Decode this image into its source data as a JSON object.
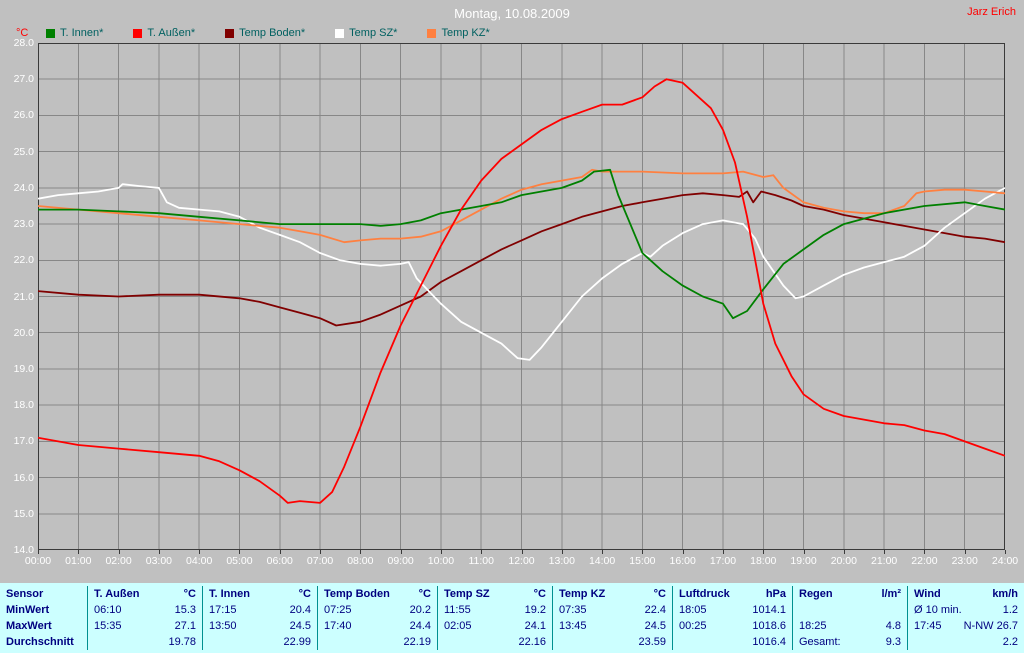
{
  "header": {
    "title": "Montag, 10.08.2009",
    "user": "Jarz Erich",
    "y_unit": "°C"
  },
  "colors": {
    "background": "#c0c0c0",
    "grid": "#878787",
    "title_text": "#ffffff",
    "accent_red": "#ff0000",
    "legend_text": "#006060",
    "table_background": "#ccffff",
    "table_text": "#000080",
    "table_divider": "#009090"
  },
  "chart_data": {
    "type": "line",
    "title": "Montag, 10.08.2009",
    "ylabel": "°C",
    "xlabel": "",
    "grid": true,
    "legend_position": "top-left",
    "xlim": [
      0,
      24
    ],
    "ylim": [
      14,
      28
    ],
    "x_ticks": [
      "00:00",
      "01:00",
      "02:00",
      "03:00",
      "04:00",
      "05:00",
      "06:00",
      "07:00",
      "08:00",
      "09:00",
      "10:00",
      "11:00",
      "12:00",
      "13:00",
      "14:00",
      "15:00",
      "16:00",
      "17:00",
      "18:00",
      "19:00",
      "20:00",
      "21:00",
      "22:00",
      "23:00",
      "24:00"
    ],
    "y_ticks": [
      "28.0",
      "27.0",
      "26.0",
      "25.0",
      "24.0",
      "23.0",
      "22.0",
      "21.0",
      "20.0",
      "19.0",
      "18.0",
      "17.0",
      "16.0",
      "15.0",
      "14.0"
    ],
    "series": [
      {
        "name": "T. Innen*",
        "color": "#008000",
        "points": [
          [
            0,
            23.4
          ],
          [
            1,
            23.4
          ],
          [
            2,
            23.35
          ],
          [
            3,
            23.3
          ],
          [
            4,
            23.2
          ],
          [
            5,
            23.1
          ],
          [
            6,
            23.0
          ],
          [
            7,
            23.0
          ],
          [
            8,
            23.0
          ],
          [
            8.5,
            22.95
          ],
          [
            9,
            23.0
          ],
          [
            9.5,
            23.1
          ],
          [
            10,
            23.3
          ],
          [
            10.5,
            23.4
          ],
          [
            11,
            23.5
          ],
          [
            11.5,
            23.6
          ],
          [
            12,
            23.8
          ],
          [
            12.5,
            23.9
          ],
          [
            13,
            24.0
          ],
          [
            13.5,
            24.2
          ],
          [
            13.8,
            24.45
          ],
          [
            14.2,
            24.5
          ],
          [
            14.4,
            23.8
          ],
          [
            15,
            22.2
          ],
          [
            15.5,
            21.7
          ],
          [
            16,
            21.3
          ],
          [
            16.5,
            21.0
          ],
          [
            17,
            20.8
          ],
          [
            17.25,
            20.4
          ],
          [
            17.6,
            20.6
          ],
          [
            18,
            21.2
          ],
          [
            18.5,
            21.9
          ],
          [
            19,
            22.3
          ],
          [
            19.5,
            22.7
          ],
          [
            20,
            23.0
          ],
          [
            21,
            23.3
          ],
          [
            22,
            23.5
          ],
          [
            23,
            23.6
          ],
          [
            23.5,
            23.5
          ],
          [
            24,
            23.4
          ]
        ]
      },
      {
        "name": "T. Außen*",
        "color": "#ff0000",
        "points": [
          [
            0,
            17.1
          ],
          [
            1,
            16.9
          ],
          [
            2,
            16.8
          ],
          [
            3,
            16.7
          ],
          [
            4,
            16.6
          ],
          [
            4.5,
            16.45
          ],
          [
            5,
            16.2
          ],
          [
            5.5,
            15.9
          ],
          [
            6,
            15.5
          ],
          [
            6.2,
            15.3
          ],
          [
            6.5,
            15.35
          ],
          [
            7,
            15.3
          ],
          [
            7.3,
            15.6
          ],
          [
            7.6,
            16.3
          ],
          [
            8,
            17.4
          ],
          [
            8.5,
            18.9
          ],
          [
            9,
            20.2
          ],
          [
            9.5,
            21.3
          ],
          [
            10,
            22.4
          ],
          [
            10.5,
            23.4
          ],
          [
            11,
            24.2
          ],
          [
            11.5,
            24.8
          ],
          [
            12,
            25.2
          ],
          [
            12.5,
            25.6
          ],
          [
            13,
            25.9
          ],
          [
            13.5,
            26.1
          ],
          [
            14,
            26.3
          ],
          [
            14.5,
            26.3
          ],
          [
            15,
            26.5
          ],
          [
            15.3,
            26.8
          ],
          [
            15.6,
            27.0
          ],
          [
            16,
            26.9
          ],
          [
            16.3,
            26.6
          ],
          [
            16.7,
            26.2
          ],
          [
            17,
            25.6
          ],
          [
            17.3,
            24.7
          ],
          [
            17.6,
            23.2
          ],
          [
            18,
            20.8
          ],
          [
            18.3,
            19.7
          ],
          [
            18.7,
            18.8
          ],
          [
            19,
            18.3
          ],
          [
            19.5,
            17.9
          ],
          [
            20,
            17.7
          ],
          [
            20.5,
            17.6
          ],
          [
            21,
            17.5
          ],
          [
            21.5,
            17.45
          ],
          [
            22,
            17.3
          ],
          [
            22.5,
            17.2
          ],
          [
            23,
            17.0
          ],
          [
            23.5,
            16.8
          ],
          [
            24,
            16.6
          ]
        ]
      },
      {
        "name": "Temp Boden*",
        "color": "#800000",
        "points": [
          [
            0,
            21.15
          ],
          [
            1,
            21.05
          ],
          [
            2,
            21.0
          ],
          [
            3,
            21.05
          ],
          [
            4,
            21.05
          ],
          [
            5,
            20.95
          ],
          [
            5.5,
            20.85
          ],
          [
            6,
            20.7
          ],
          [
            6.5,
            20.55
          ],
          [
            7,
            20.4
          ],
          [
            7.4,
            20.2
          ],
          [
            8,
            20.3
          ],
          [
            8.5,
            20.5
          ],
          [
            9,
            20.75
          ],
          [
            9.5,
            21.0
          ],
          [
            10,
            21.4
          ],
          [
            10.5,
            21.7
          ],
          [
            11,
            22.0
          ],
          [
            11.5,
            22.3
          ],
          [
            12,
            22.55
          ],
          [
            12.5,
            22.8
          ],
          [
            13,
            23.0
          ],
          [
            13.5,
            23.2
          ],
          [
            14,
            23.35
          ],
          [
            14.5,
            23.5
          ],
          [
            15,
            23.6
          ],
          [
            15.5,
            23.7
          ],
          [
            16,
            23.8
          ],
          [
            16.5,
            23.85
          ],
          [
            17,
            23.8
          ],
          [
            17.4,
            23.75
          ],
          [
            17.6,
            23.9
          ],
          [
            17.75,
            23.6
          ],
          [
            17.95,
            23.9
          ],
          [
            18.3,
            23.8
          ],
          [
            18.7,
            23.65
          ],
          [
            19,
            23.5
          ],
          [
            19.5,
            23.4
          ],
          [
            20,
            23.25
          ],
          [
            20.5,
            23.15
          ],
          [
            21,
            23.05
          ],
          [
            21.5,
            22.95
          ],
          [
            22,
            22.85
          ],
          [
            22.5,
            22.75
          ],
          [
            23,
            22.65
          ],
          [
            23.5,
            22.6
          ],
          [
            24,
            22.5
          ]
        ]
      },
      {
        "name": "Temp SZ*",
        "color": "#ffffff",
        "points": [
          [
            0,
            23.7
          ],
          [
            0.5,
            23.8
          ],
          [
            1,
            23.85
          ],
          [
            1.5,
            23.9
          ],
          [
            2,
            24.0
          ],
          [
            2.1,
            24.1
          ],
          [
            2.5,
            24.05
          ],
          [
            3,
            24.0
          ],
          [
            3.2,
            23.6
          ],
          [
            3.5,
            23.45
          ],
          [
            4,
            23.4
          ],
          [
            4.5,
            23.35
          ],
          [
            5,
            23.2
          ],
          [
            5.5,
            22.9
          ],
          [
            6,
            22.7
          ],
          [
            6.5,
            22.5
          ],
          [
            7,
            22.2
          ],
          [
            7.5,
            22.0
          ],
          [
            8,
            21.9
          ],
          [
            8.5,
            21.85
          ],
          [
            9,
            21.9
          ],
          [
            9.2,
            21.95
          ],
          [
            9.4,
            21.5
          ],
          [
            9.7,
            21.15
          ],
          [
            10,
            20.8
          ],
          [
            10.5,
            20.3
          ],
          [
            11,
            20.0
          ],
          [
            11.5,
            19.7
          ],
          [
            11.9,
            19.3
          ],
          [
            12.2,
            19.25
          ],
          [
            12.5,
            19.6
          ],
          [
            13,
            20.3
          ],
          [
            13.5,
            21.0
          ],
          [
            14,
            21.5
          ],
          [
            14.5,
            21.9
          ],
          [
            15,
            22.2
          ],
          [
            15.2,
            22.1
          ],
          [
            15.5,
            22.4
          ],
          [
            16,
            22.75
          ],
          [
            16.5,
            23.0
          ],
          [
            17,
            23.1
          ],
          [
            17.5,
            23.0
          ],
          [
            17.8,
            22.6
          ],
          [
            18,
            22.1
          ],
          [
            18.5,
            21.3
          ],
          [
            18.8,
            20.95
          ],
          [
            19,
            21.0
          ],
          [
            19.5,
            21.3
          ],
          [
            20,
            21.6
          ],
          [
            20.5,
            21.8
          ],
          [
            21,
            21.95
          ],
          [
            21.5,
            22.1
          ],
          [
            22,
            22.4
          ],
          [
            22.5,
            22.9
          ],
          [
            23,
            23.3
          ],
          [
            23.5,
            23.7
          ],
          [
            24,
            24.0
          ]
        ]
      },
      {
        "name": "Temp KZ*",
        "color": "#ff8040",
        "points": [
          [
            0,
            23.5
          ],
          [
            1,
            23.4
          ],
          [
            2,
            23.3
          ],
          [
            3,
            23.2
          ],
          [
            4,
            23.1
          ],
          [
            5,
            23.0
          ],
          [
            6,
            22.9
          ],
          [
            6.5,
            22.8
          ],
          [
            7,
            22.7
          ],
          [
            7.6,
            22.5
          ],
          [
            8,
            22.55
          ],
          [
            8.5,
            22.6
          ],
          [
            9,
            22.6
          ],
          [
            9.5,
            22.65
          ],
          [
            10,
            22.8
          ],
          [
            10.5,
            23.1
          ],
          [
            11,
            23.4
          ],
          [
            11.5,
            23.7
          ],
          [
            12,
            23.95
          ],
          [
            12.5,
            24.1
          ],
          [
            13,
            24.2
          ],
          [
            13.5,
            24.3
          ],
          [
            13.75,
            24.5
          ],
          [
            14,
            24.45
          ],
          [
            15,
            24.45
          ],
          [
            16,
            24.4
          ],
          [
            17,
            24.4
          ],
          [
            17.5,
            24.45
          ],
          [
            18,
            24.3
          ],
          [
            18.25,
            24.35
          ],
          [
            18.5,
            24.0
          ],
          [
            19,
            23.6
          ],
          [
            19.5,
            23.45
          ],
          [
            20,
            23.35
          ],
          [
            20.5,
            23.3
          ],
          [
            21,
            23.3
          ],
          [
            21.5,
            23.5
          ],
          [
            21.8,
            23.85
          ],
          [
            22,
            23.9
          ],
          [
            22.5,
            23.95
          ],
          [
            23,
            23.95
          ],
          [
            23.5,
            23.9
          ],
          [
            24,
            23.85
          ]
        ]
      }
    ]
  },
  "table": {
    "col_groups": [
      {
        "name": "Sensor",
        "unit": ""
      },
      {
        "name": "T. Außen",
        "unit": "°C"
      },
      {
        "name": "T. Innen",
        "unit": "°C"
      },
      {
        "name": "Temp Boden",
        "unit": "°C"
      },
      {
        "name": "Temp SZ",
        "unit": "°C"
      },
      {
        "name": "Temp KZ",
        "unit": "°C"
      },
      {
        "name": "Luftdruck",
        "unit": "hPa"
      },
      {
        "name": "Regen",
        "unit": "l/m²"
      },
      {
        "name": "Wind",
        "unit": "km/h"
      }
    ],
    "rows": [
      {
        "label": "MinWert",
        "cells": [
          [
            "06:10",
            "15.3"
          ],
          [
            "17:15",
            "20.4"
          ],
          [
            "07:25",
            "20.2"
          ],
          [
            "11:55",
            "19.2"
          ],
          [
            "07:35",
            "22.4"
          ],
          [
            "18:05",
            "1014.1"
          ],
          [
            "",
            ""
          ],
          [
            "Ø 10 min.",
            "1.2"
          ]
        ]
      },
      {
        "label": "MaxWert",
        "cells": [
          [
            "15:35",
            "27.1"
          ],
          [
            "13:50",
            "24.5"
          ],
          [
            "17:40",
            "24.4"
          ],
          [
            "02:05",
            "24.1"
          ],
          [
            "13:45",
            "24.5"
          ],
          [
            "00:25",
            "1018.6"
          ],
          [
            "18:25",
            "4.8"
          ],
          [
            "17:45",
            "N-NW 26.7"
          ]
        ]
      },
      {
        "label": "Durchschnitt",
        "cells": [
          [
            "",
            "19.78"
          ],
          [
            "",
            "22.99"
          ],
          [
            "",
            "22.19"
          ],
          [
            "",
            "22.16"
          ],
          [
            "",
            "23.59"
          ],
          [
            "",
            "1016.4"
          ],
          [
            "Gesamt:",
            "9.3"
          ],
          [
            "",
            "2.2"
          ]
        ]
      }
    ]
  }
}
